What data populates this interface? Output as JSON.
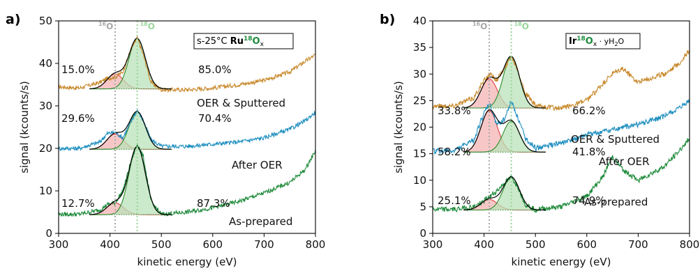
{
  "chart_data": [
    {
      "type": "line",
      "panel_label": "a)",
      "sample_label": {
        "prefix": "s-25°C ",
        "bold": "Ru",
        "sup": "18",
        "bold2": "O",
        "sub": "x"
      },
      "reference_lines": [
        {
          "label_sup": "16",
          "label": "O",
          "x": 410,
          "color": "#aaaaaa"
        },
        {
          "label_sup": "18",
          "label": "O",
          "x": 453,
          "color": "#99d699"
        }
      ],
      "xlabel": "kinetic energy (eV)",
      "ylabel": "signal (kcounts/s)",
      "xlim": [
        300,
        800
      ],
      "ylim": [
        0,
        50
      ],
      "xticks": [
        300,
        400,
        500,
        600,
        700,
        800
      ],
      "yticks": [
        0,
        10,
        20,
        30,
        40,
        50
      ],
      "series": [
        {
          "name": "OER & Sputtered",
          "color": "#c8892c",
          "x": [
            300,
            340,
            380,
            395,
            410,
            425,
            440,
            453,
            465,
            480,
            500,
            550,
            600,
            650,
            700,
            750,
            780,
            800
          ],
          "y": [
            34.5,
            34.2,
            35.5,
            36.5,
            36.8,
            38.0,
            43.0,
            46.0,
            42.0,
            35.5,
            33.8,
            33.8,
            34.2,
            35.0,
            36.0,
            38.0,
            40.5,
            42.0
          ],
          "peak_16O": {
            "center": 410,
            "height": 3.5,
            "baseline": 34.0
          },
          "peak_18O": {
            "center": 453,
            "height": 11.8,
            "baseline": 34.0
          },
          "pct_16O": "15.0%",
          "pct_18O": "85.0%"
        },
        {
          "name": "After OER",
          "color": "#1f8fbf",
          "x": [
            300,
            340,
            380,
            395,
            410,
            425,
            440,
            453,
            465,
            480,
            500,
            550,
            600,
            650,
            700,
            750,
            780,
            800
          ],
          "y": [
            20.0,
            20.0,
            21.5,
            23.5,
            23.8,
            22.5,
            26.0,
            29.0,
            26.5,
            22.0,
            20.5,
            20.5,
            21.0,
            21.5,
            22.5,
            24.5,
            26.5,
            28.5
          ],
          "peak_16O": {
            "center": 410,
            "height": 3.6,
            "baseline": 19.8
          },
          "peak_18O": {
            "center": 453,
            "height": 8.8,
            "baseline": 19.8
          },
          "pct_16O": "29.6%",
          "pct_18O": "70.4%"
        },
        {
          "name": "As-prepared",
          "color": "#1d8a3a",
          "x": [
            300,
            340,
            380,
            395,
            410,
            425,
            440,
            453,
            465,
            480,
            500,
            550,
            600,
            650,
            700,
            750,
            780,
            800
          ],
          "y": [
            4.5,
            4.5,
            5.5,
            6.8,
            7.2,
            10.0,
            16.5,
            21.0,
            18.0,
            7.5,
            4.5,
            5.0,
            6.0,
            7.5,
            9.5,
            12.0,
            15.0,
            19.5
          ],
          "peak_16O": {
            "center": 410,
            "height": 2.8,
            "baseline": 4.4
          },
          "peak_18O": {
            "center": 453,
            "height": 16.0,
            "baseline": 4.4
          },
          "pct_16O": "12.7%",
          "pct_18O": "87.3%"
        }
      ]
    },
    {
      "type": "line",
      "panel_label": "b)",
      "sample_label": {
        "prefix": "",
        "bold": "Ir",
        "sup": "18",
        "bold2": "O",
        "sub": "x",
        "suffix_pre": " · yH",
        "suffix_sub": "2",
        "suffix_post": "O"
      },
      "reference_lines": [
        {
          "label_sup": "16",
          "label": "O",
          "x": 410,
          "color": "#aaaaaa"
        },
        {
          "label_sup": "18",
          "label": "O",
          "x": 453,
          "color": "#99d699"
        }
      ],
      "xlabel": "kinetic energy (eV)",
      "ylabel": "signal (kcounts/s)",
      "xlim": [
        300,
        800
      ],
      "ylim": [
        0,
        40
      ],
      "xticks": [
        300,
        400,
        500,
        600,
        700,
        800
      ],
      "yticks": [
        0,
        5,
        10,
        15,
        20,
        25,
        30,
        35,
        40
      ],
      "series": [
        {
          "name": "OER & Sputtered",
          "color": "#c8892c",
          "x": [
            300,
            340,
            380,
            395,
            410,
            425,
            440,
            453,
            465,
            480,
            500,
            550,
            600,
            630,
            650,
            670,
            700,
            750,
            780,
            800
          ],
          "y": [
            24.0,
            24.0,
            25.5,
            28.0,
            30.0,
            29.0,
            31.0,
            33.5,
            31.0,
            26.5,
            24.0,
            23.5,
            25.0,
            28.0,
            30.0,
            31.0,
            28.5,
            30.0,
            32.0,
            34.5
          ],
          "peak_16O": {
            "center": 410,
            "height": 5.5,
            "baseline": 23.6
          },
          "peak_18O": {
            "center": 453,
            "height": 9.6,
            "baseline": 23.6
          },
          "pct_16O": "33.8%",
          "pct_18O": "66.2%"
        },
        {
          "name": "After OER",
          "color": "#1f8fbf",
          "x": [
            300,
            340,
            380,
            395,
            410,
            425,
            440,
            453,
            465,
            480,
            500,
            550,
            600,
            650,
            700,
            750,
            780,
            800
          ],
          "y": [
            15.5,
            15.5,
            17.5,
            21.5,
            24.5,
            20.5,
            21.5,
            25.0,
            22.0,
            18.0,
            16.0,
            17.0,
            18.5,
            19.5,
            20.5,
            22.0,
            23.5,
            25.0
          ],
          "peak_16O": {
            "center": 410,
            "height": 7.8,
            "baseline": 15.3
          },
          "peak_18O": {
            "center": 453,
            "height": 5.8,
            "baseline": 15.3
          },
          "pct_16O": "58.2%",
          "pct_18O": "41.8%"
        },
        {
          "name": "As-prepared",
          "color": "#1d8a3a",
          "x": [
            300,
            340,
            380,
            395,
            410,
            425,
            440,
            453,
            465,
            480,
            500,
            550,
            600,
            630,
            650,
            670,
            700,
            750,
            780,
            800
          ],
          "y": [
            4.5,
            4.5,
            5.0,
            5.8,
            6.8,
            8.0,
            9.5,
            10.5,
            9.0,
            5.5,
            4.5,
            5.0,
            7.0,
            10.5,
            14.5,
            12.0,
            10.0,
            12.5,
            15.5,
            18.0
          ],
          "peak_16O": {
            "center": 410,
            "height": 2.0,
            "baseline": 4.4
          },
          "peak_18O": {
            "center": 453,
            "height": 6.2,
            "baseline": 4.4
          },
          "pct_16O": "25.1%",
          "pct_18O": "74.9%"
        }
      ]
    }
  ],
  "style": {
    "red_fill": "#f4b4b4",
    "red_line": "#e04040",
    "green_fill": "#b9e2b9",
    "green_line": "#2a8a2a",
    "fit_line": "#000000"
  }
}
